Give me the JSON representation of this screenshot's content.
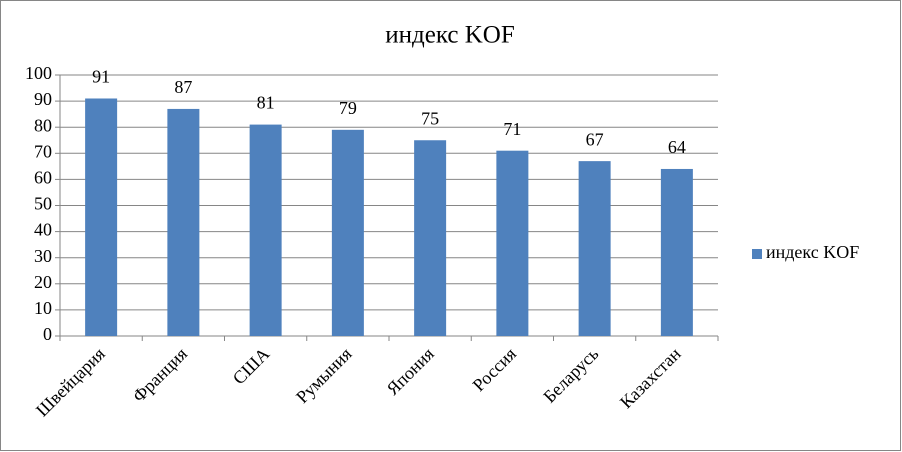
{
  "chart_data": {
    "type": "bar",
    "title": "индекс KOF",
    "categories": [
      "Швейцария",
      "Франция",
      "США",
      "Румыния",
      "Япония",
      "Россия",
      "Беларусь",
      "Казахстан"
    ],
    "series": [
      {
        "name": "индекс KOF",
        "color": "#4f81bd",
        "values": [
          91,
          87,
          81,
          79,
          75,
          71,
          67,
          64
        ]
      }
    ],
    "ylim": [
      0,
      100
    ],
    "yticks": [
      0,
      10,
      20,
      30,
      40,
      50,
      60,
      70,
      80,
      90,
      100
    ],
    "grid": true,
    "legend": "right"
  }
}
